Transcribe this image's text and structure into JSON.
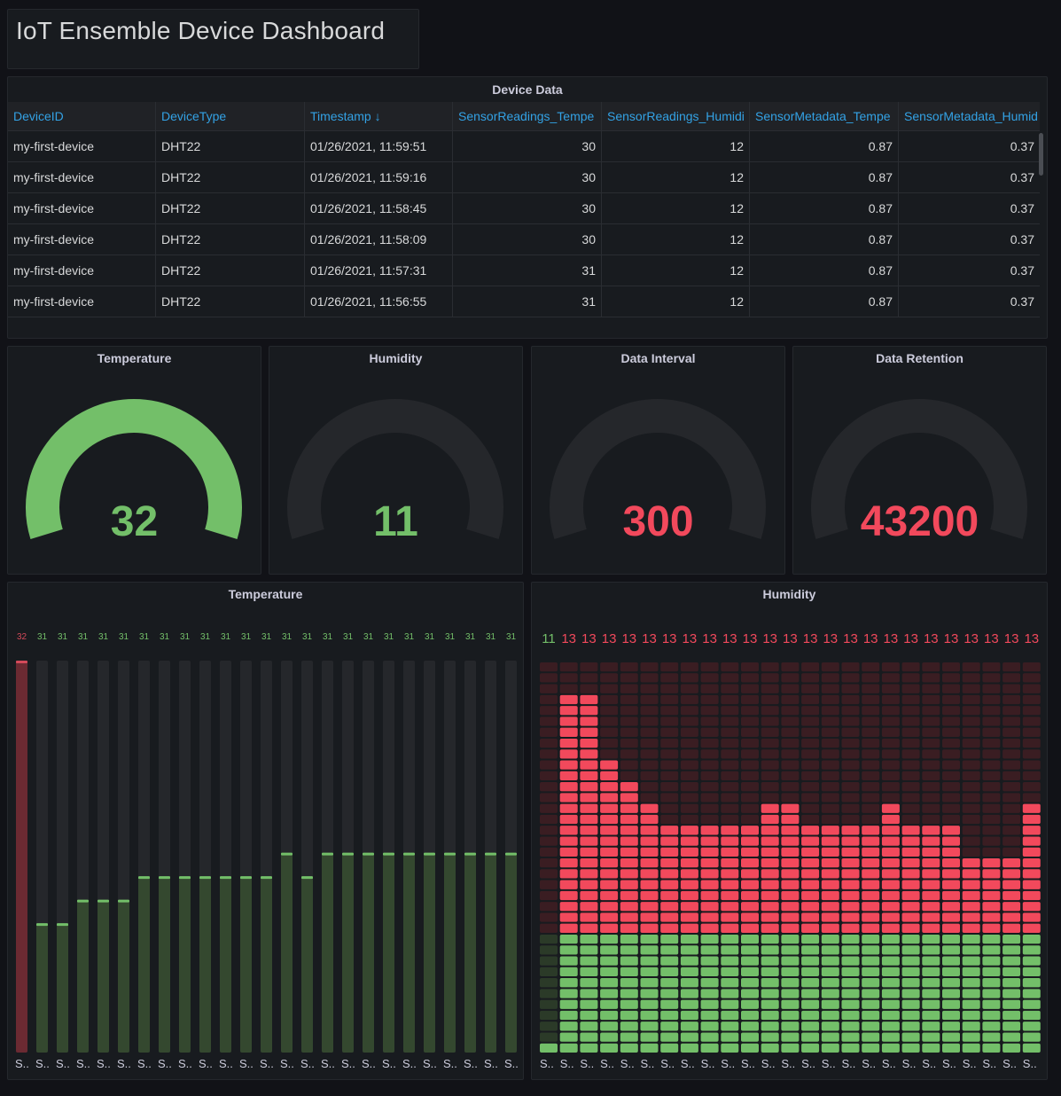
{
  "dashboard": {
    "title": "IoT Ensemble Device Dashboard"
  },
  "table": {
    "title": "Device Data",
    "columns": [
      "DeviceID",
      "DeviceType",
      "Timestamp ↓",
      "SensorReadings_Tempe",
      "SensorReadings_Humidi",
      "SensorMetadata_Tempe",
      "SensorMetadata_Humid"
    ],
    "rows": [
      [
        "my-first-device",
        "DHT22",
        "01/26/2021, 11:59:51",
        "30",
        "12",
        "0.87",
        "0.37"
      ],
      [
        "my-first-device",
        "DHT22",
        "01/26/2021, 11:59:16",
        "30",
        "12",
        "0.87",
        "0.37"
      ],
      [
        "my-first-device",
        "DHT22",
        "01/26/2021, 11:58:45",
        "30",
        "12",
        "0.87",
        "0.37"
      ],
      [
        "my-first-device",
        "DHT22",
        "01/26/2021, 11:58:09",
        "30",
        "12",
        "0.87",
        "0.37"
      ],
      [
        "my-first-device",
        "DHT22",
        "01/26/2021, 11:57:31",
        "31",
        "12",
        "0.87",
        "0.37"
      ],
      [
        "my-first-device",
        "DHT22",
        "01/26/2021, 11:56:55",
        "31",
        "12",
        "0.87",
        "0.37"
      ]
    ]
  },
  "gauges": [
    {
      "title": "Temperature",
      "value": "32",
      "color": "#73bf69",
      "fill_fraction": 1.0
    },
    {
      "title": "Humidity",
      "value": "11",
      "color": "#73bf69",
      "fill_fraction": 0.0
    },
    {
      "title": "Data Interval",
      "value": "300",
      "color": "#f2495c",
      "fill_fraction": 0.0
    },
    {
      "title": "Data Retention",
      "value": "43200",
      "color": "#f2495c",
      "fill_fraction": 0.0
    }
  ],
  "temperature_bars": {
    "title": "Temperature",
    "category_label": "S..",
    "values": [
      32,
      31,
      31,
      31,
      31,
      31,
      31,
      31,
      31,
      31,
      31,
      31,
      31,
      31,
      31,
      31,
      31,
      31,
      31,
      31,
      31,
      31,
      31,
      31,
      31
    ],
    "fill_fractions": [
      1.0,
      0.33,
      0.33,
      0.39,
      0.39,
      0.39,
      0.45,
      0.45,
      0.45,
      0.45,
      0.45,
      0.45,
      0.45,
      0.51,
      0.45,
      0.51,
      0.51,
      0.51,
      0.51,
      0.51,
      0.51,
      0.51,
      0.51,
      0.51,
      0.51
    ],
    "colors": {
      "high": "#d44a5a",
      "normal": "#73bf69"
    }
  },
  "humidity_bars": {
    "title": "Humidity",
    "category_label": "S..",
    "values": [
      11,
      13,
      13,
      13,
      13,
      13,
      13,
      13,
      13,
      13,
      13,
      13,
      13,
      13,
      13,
      13,
      13,
      13,
      13,
      13,
      13,
      13,
      13,
      13,
      13
    ],
    "fill_fractions": [
      0.04,
      0.92,
      0.92,
      0.76,
      0.69,
      0.65,
      0.57,
      0.57,
      0.57,
      0.57,
      0.57,
      0.65,
      0.65,
      0.57,
      0.57,
      0.57,
      0.57,
      0.65,
      0.57,
      0.57,
      0.57,
      0.5,
      0.5,
      0.5,
      0.65
    ],
    "threshold_fraction": 0.31,
    "colors": {
      "high": "#f2495c",
      "normal": "#73bf69"
    }
  }
}
